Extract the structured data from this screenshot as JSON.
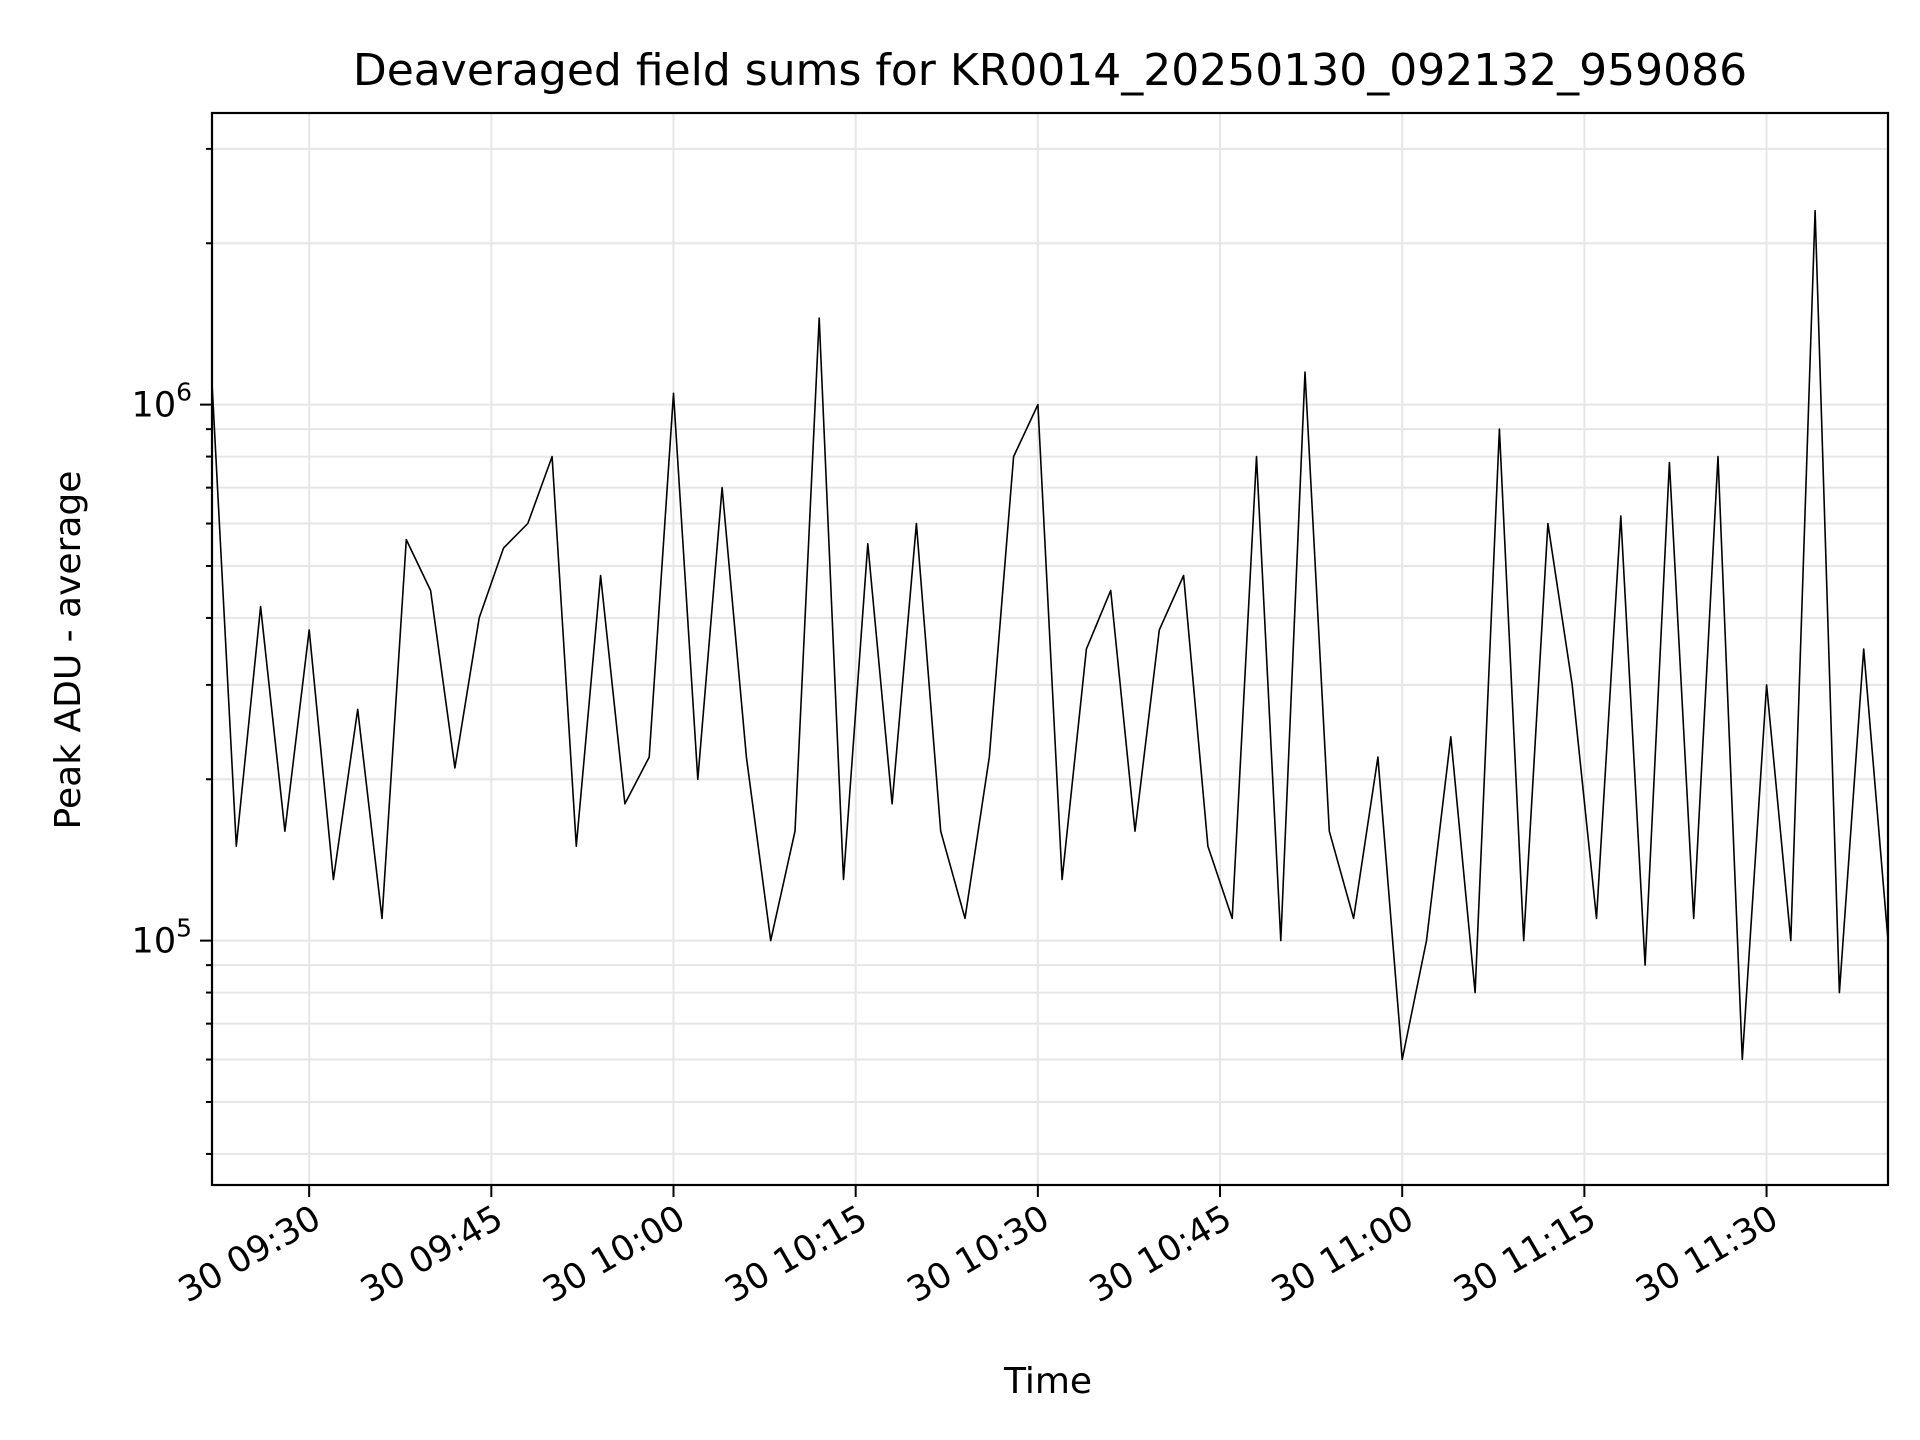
{
  "chart_data": {
    "type": "line",
    "title": "Deaveraged field sums for KR0014_20250130_092132_959086",
    "xlabel": "Time",
    "ylabel": "Peak ADU - average",
    "yscale": "log",
    "ylim": [
      35000,
      3500000
    ],
    "xlim": [
      "2025-01-30 09:22",
      "2025-01-30 11:40"
    ],
    "grid": true,
    "line_color": "#000000",
    "x_ticks": [
      "2025-01-30 09:30",
      "2025-01-30 09:45",
      "2025-01-30 10:00",
      "2025-01-30 10:15",
      "2025-01-30 10:30",
      "2025-01-30 10:45",
      "2025-01-30 11:00",
      "2025-01-30 11:15",
      "2025-01-30 11:30"
    ],
    "x_tick_labels": [
      "30 09:30",
      "30 09:45",
      "30 10:00",
      "30 10:15",
      "30 10:30",
      "30 10:45",
      "30 11:00",
      "30 11:15",
      "30 11:30"
    ],
    "y_ticks": [
      100000,
      1000000
    ],
    "y_tick_labels": [
      {
        "base": "10",
        "exp": "5"
      },
      {
        "base": "10",
        "exp": "6"
      }
    ],
    "x": [
      "2025-01-30 09:22",
      "2025-01-30 09:24",
      "2025-01-30 09:26",
      "2025-01-30 09:28",
      "2025-01-30 09:30",
      "2025-01-30 09:32",
      "2025-01-30 09:34",
      "2025-01-30 09:36",
      "2025-01-30 09:38",
      "2025-01-30 09:40",
      "2025-01-30 09:42",
      "2025-01-30 09:44",
      "2025-01-30 09:46",
      "2025-01-30 09:48",
      "2025-01-30 09:50",
      "2025-01-30 09:52",
      "2025-01-30 09:54",
      "2025-01-30 09:56",
      "2025-01-30 09:58",
      "2025-01-30 10:00",
      "2025-01-30 10:02",
      "2025-01-30 10:04",
      "2025-01-30 10:06",
      "2025-01-30 10:08",
      "2025-01-30 10:10",
      "2025-01-30 10:12",
      "2025-01-30 10:14",
      "2025-01-30 10:16",
      "2025-01-30 10:18",
      "2025-01-30 10:20",
      "2025-01-30 10:22",
      "2025-01-30 10:24",
      "2025-01-30 10:26",
      "2025-01-30 10:28",
      "2025-01-30 10:30",
      "2025-01-30 10:32",
      "2025-01-30 10:34",
      "2025-01-30 10:36",
      "2025-01-30 10:38",
      "2025-01-30 10:40",
      "2025-01-30 10:42",
      "2025-01-30 10:44",
      "2025-01-30 10:46",
      "2025-01-30 10:48",
      "2025-01-30 10:50",
      "2025-01-30 10:52",
      "2025-01-30 10:54",
      "2025-01-30 10:56",
      "2025-01-30 10:58",
      "2025-01-30 11:00",
      "2025-01-30 11:02",
      "2025-01-30 11:04",
      "2025-01-30 11:06",
      "2025-01-30 11:08",
      "2025-01-30 11:10",
      "2025-01-30 11:12",
      "2025-01-30 11:14",
      "2025-01-30 11:16",
      "2025-01-30 11:18",
      "2025-01-30 11:20",
      "2025-01-30 11:22",
      "2025-01-30 11:24",
      "2025-01-30 11:26",
      "2025-01-30 11:28",
      "2025-01-30 11:30",
      "2025-01-30 11:32",
      "2025-01-30 11:34",
      "2025-01-30 11:36",
      "2025-01-30 11:38",
      "2025-01-30 11:40"
    ],
    "series": [
      {
        "values": [
          1100000,
          150000,
          420000,
          160000,
          380000,
          130000,
          270000,
          110000,
          560000,
          450000,
          210000,
          400000,
          540000,
          600000,
          800000,
          150000,
          480000,
          180000,
          220000,
          1050000,
          200000,
          700000,
          220000,
          100000,
          160000,
          1450000,
          130000,
          550000,
          180000,
          600000,
          160000,
          110000,
          220000,
          800000,
          1000000,
          130000,
          350000,
          450000,
          160000,
          380000,
          480000,
          150000,
          110000,
          800000,
          100000,
          1150000,
          160000,
          110000,
          220000,
          60000,
          100000,
          240000,
          80000,
          900000,
          100000,
          600000,
          300000,
          110000,
          620000,
          90000,
          780000,
          110000,
          800000,
          60000,
          300000,
          100000,
          2300000,
          80000,
          350000,
          100000
        ]
      }
    ]
  }
}
